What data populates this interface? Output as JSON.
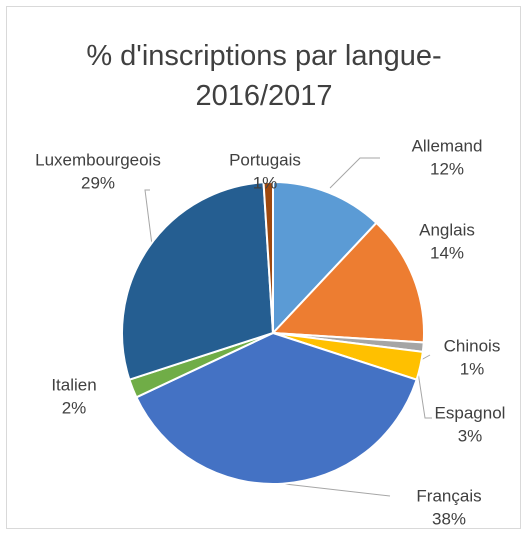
{
  "chart_data": {
    "type": "pie",
    "title": "% d'inscriptions par langue- 2016/2017",
    "categories": [
      "Allemand",
      "Anglais",
      "Chinois",
      "Espagnol",
      "Français",
      "Italien",
      "Luxembourgeois",
      "Portugais"
    ],
    "values": [
      12,
      14,
      1,
      3,
      38,
      2,
      29,
      1
    ],
    "value_labels": [
      "12%",
      "14%",
      "1%",
      "3%",
      "38%",
      "2%",
      "29%",
      "1%"
    ],
    "colors": [
      "#5b9bd5",
      "#ed7d31",
      "#a5a5a5",
      "#ffc000",
      "#4472c4",
      "#70ad47",
      "#255e91",
      "#9e480e"
    ]
  }
}
